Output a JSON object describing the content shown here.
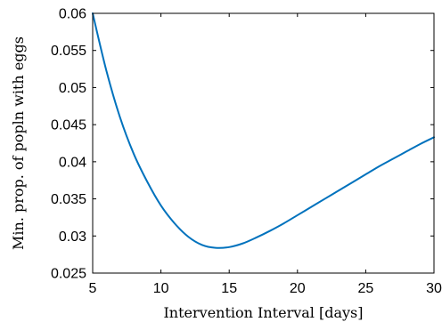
{
  "chart_data": {
    "type": "line",
    "title": "",
    "xlabel": "Intervention Interval [days]",
    "ylabel": "Min. prop. of popln with eggs",
    "xlim": [
      5,
      30
    ],
    "ylim": [
      0.025,
      0.06
    ],
    "xticks": [
      5,
      10,
      15,
      20,
      25,
      30
    ],
    "xtick_labels": [
      "5",
      "10",
      "15",
      "20",
      "25",
      "30"
    ],
    "yticks": [
      0.025,
      0.03,
      0.035,
      0.04,
      0.045,
      0.05,
      0.055,
      0.06
    ],
    "ytick_labels": [
      "0.025",
      "0.03",
      "0.035",
      "0.04",
      "0.045",
      "0.05",
      "0.055",
      "0.06"
    ],
    "grid": false,
    "legend": "none",
    "series": [
      {
        "color": "#0072BD",
        "x": [
          5,
          6,
          7,
          8,
          9,
          10,
          11,
          12,
          13,
          14,
          15,
          16,
          17,
          18,
          19,
          20,
          21,
          22,
          23,
          24,
          25,
          26,
          27,
          28,
          29,
          30
        ],
        "y": [
          0.06,
          0.0523,
          0.046,
          0.0411,
          0.0373,
          0.0341,
          0.0317,
          0.0299,
          0.0288,
          0.0284,
          0.0285,
          0.029,
          0.0298,
          0.0307,
          0.0317,
          0.0328,
          0.0339,
          0.035,
          0.0361,
          0.0372,
          0.0383,
          0.0394,
          0.0404,
          0.0414,
          0.0424,
          0.0433
        ]
      }
    ]
  }
}
